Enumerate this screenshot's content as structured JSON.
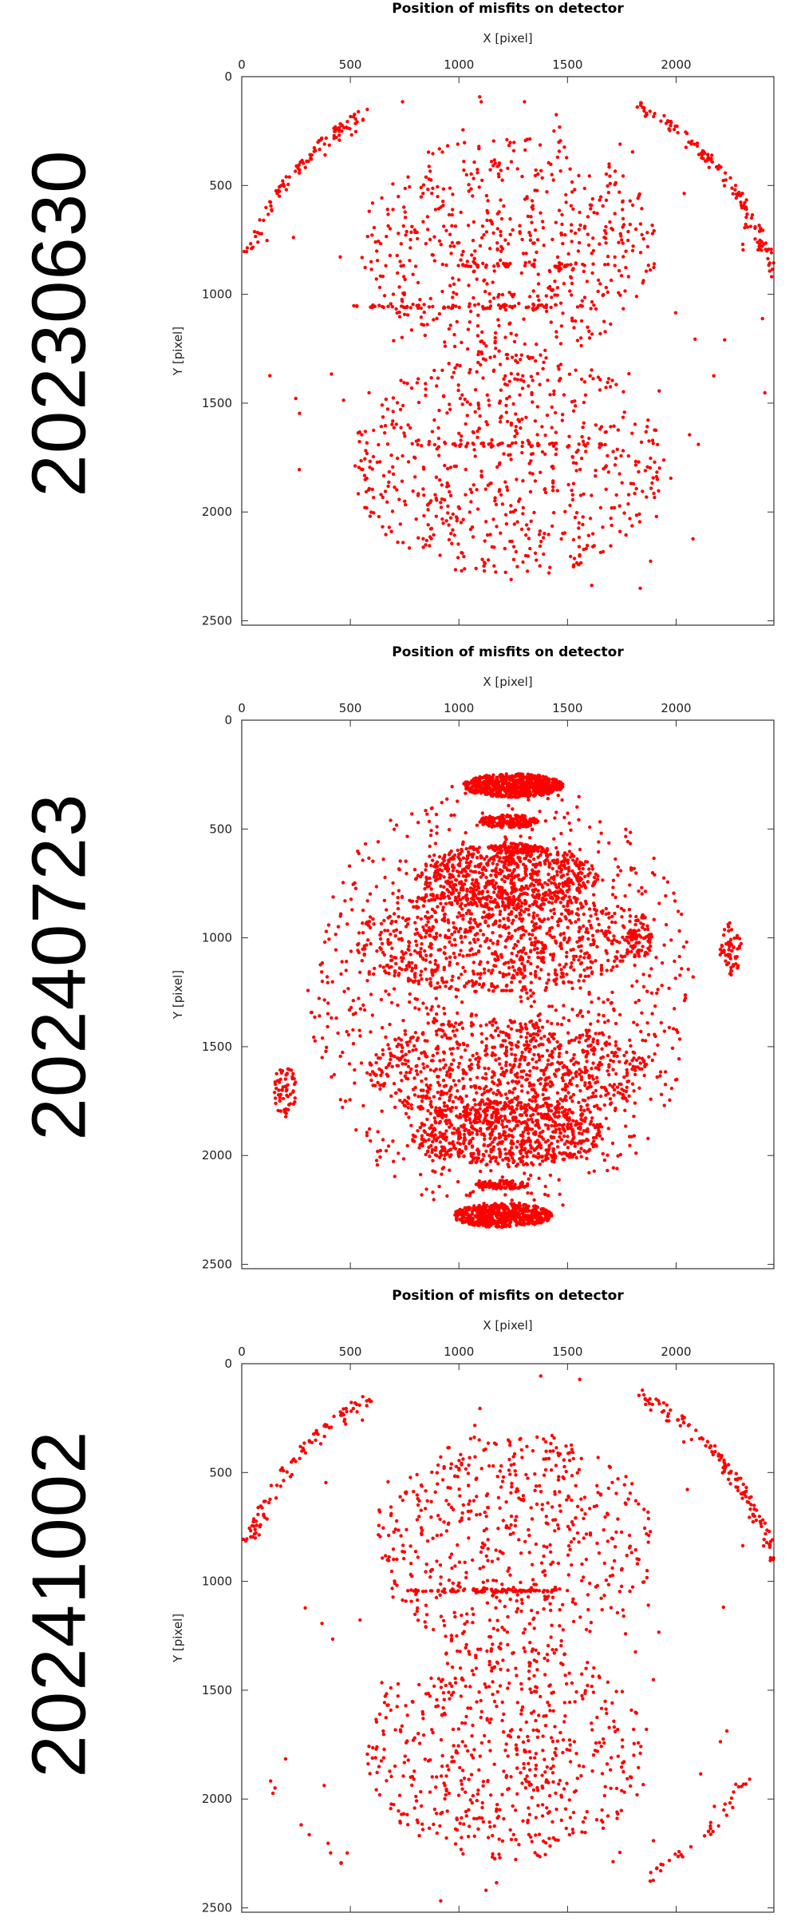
{
  "colors": {
    "points": "#ff0000",
    "axis": "#333333",
    "background": "#ffffff"
  },
  "chart_data": [
    {
      "type": "scatter",
      "run_label": "20230630",
      "title": "Position of misfits on detector",
      "xlabel": "X [pixel]",
      "ylabel": "Y [pixel]",
      "xlim": [
        0,
        2450
      ],
      "ylim": [
        2520,
        0
      ],
      "x_axis_position": "top",
      "y_axis_inverted": true,
      "x_ticks": [
        "0",
        "500",
        "1000",
        "1500",
        "2000"
      ],
      "y_ticks": [
        "0",
        "500",
        "1000",
        "1500",
        "2000",
        "2500"
      ],
      "grid": false,
      "series": [
        {
          "clusters": [
            {
              "shape": "arc",
              "center": [
                1225,
                1260
              ],
              "radius": 1290,
              "angle_range": [
                -160,
                -120
              ],
              "count": 160,
              "jitter": 25
            },
            {
              "shape": "arc",
              "center": [
                1225,
                1260
              ],
              "radius": 1290,
              "angle_range": [
                -62,
                -15
              ],
              "count": 190,
              "jitter": 25
            },
            {
              "shape": "ellipse",
              "center": [
                1230,
                780
              ],
              "radii": [
                680,
                520
              ],
              "count": 560
            },
            {
              "shape": "ellipse",
              "center": [
                1225,
                1780
              ],
              "radii": [
                720,
                520
              ],
              "count": 620
            },
            {
              "shape": "band",
              "center": [
                1050,
                1055
              ],
              "radii": [
                550,
                10
              ],
              "count": 70
            },
            {
              "shape": "band",
              "center": [
                1350,
                865
              ],
              "radii": [
                450,
                10
              ],
              "count": 45
            },
            {
              "shape": "band",
              "center": [
                1250,
                1690
              ],
              "radii": [
                450,
                10
              ],
              "count": 45
            },
            {
              "shape": "ellipse",
              "center": [
                1225,
                1260
              ],
              "radii": [
                1220,
                1260
              ],
              "count": 70
            }
          ]
        }
      ]
    },
    {
      "type": "scatter",
      "run_label": "20240723",
      "title": "Position of misfits on detector",
      "xlabel": "X [pixel]",
      "ylabel": "Y [pixel]",
      "xlim": [
        0,
        2450
      ],
      "ylim": [
        2520,
        0
      ],
      "x_axis_position": "top",
      "y_axis_inverted": true,
      "x_ticks": [
        "0",
        "500",
        "1000",
        "1500",
        "2000"
      ],
      "y_ticks": [
        "0",
        "500",
        "1000",
        "1500",
        "2000",
        "2500"
      ],
      "grid": false,
      "series": [
        {
          "clusters": [
            {
              "shape": "ellipse",
              "center": [
                1250,
                300
              ],
              "radii": [
                230,
                55
              ],
              "count": 650
            },
            {
              "shape": "ellipse",
              "center": [
                1230,
                465
              ],
              "radii": [
                140,
                30
              ],
              "count": 180
            },
            {
              "shape": "ellipse",
              "center": [
                1270,
                590
              ],
              "radii": [
                100,
                25
              ],
              "count": 90
            },
            {
              "shape": "ellipse",
              "center": [
                1200,
                2135
              ],
              "radii": [
                120,
                20
              ],
              "count": 110
            },
            {
              "shape": "ellipse",
              "center": [
                1200,
                2275
              ],
              "radii": [
                230,
                55
              ],
              "count": 550
            },
            {
              "shape": "ellipse",
              "center": [
                1220,
                720
              ],
              "radii": [
                420,
                150
              ],
              "count": 650
            },
            {
              "shape": "ellipse",
              "center": [
                1170,
                1010
              ],
              "radii": [
                650,
                240
              ],
              "count": 800
            },
            {
              "shape": "ellipse",
              "center": [
                1220,
                1610
              ],
              "radii": [
                650,
                240
              ],
              "count": 800
            },
            {
              "shape": "ellipse",
              "center": [
                1220,
                1900
              ],
              "radii": [
                450,
                150
              ],
              "count": 650
            },
            {
              "shape": "ellipse",
              "center": [
                1200,
                1270
              ],
              "radii": [
                900,
                1010
              ],
              "count": 900
            },
            {
              "shape": "ellipse",
              "center": [
                1830,
                1000
              ],
              "radii": [
                60,
                110
              ],
              "count": 80
            },
            {
              "shape": "ellipse",
              "center": [
                2250,
                1050
              ],
              "radii": [
                50,
                120
              ],
              "count": 60
            },
            {
              "shape": "ellipse",
              "center": [
                200,
                1700
              ],
              "radii": [
                50,
                130
              ],
              "count": 60
            }
          ]
        }
      ]
    },
    {
      "type": "scatter",
      "run_label": "20241002",
      "title": "Position of misfits on detector",
      "xlabel": "X [pixel]",
      "ylabel": "Y [pixel]",
      "xlim": [
        0,
        2450
      ],
      "ylim": [
        2520,
        0
      ],
      "x_axis_position": "top",
      "y_axis_inverted": true,
      "x_ticks": [
        "0",
        "500",
        "1000",
        "1500",
        "2000"
      ],
      "y_ticks": [
        "0",
        "500",
        "1000",
        "1500",
        "2000",
        "2500"
      ],
      "grid": false,
      "series": [
        {
          "clusters": [
            {
              "shape": "arc",
              "center": [
                1225,
                1260
              ],
              "radius": 1290,
              "angle_range": [
                -160,
                -120
              ],
              "count": 150,
              "jitter": 25
            },
            {
              "shape": "arc",
              "center": [
                1225,
                1260
              ],
              "radius": 1290,
              "angle_range": [
                -62,
                -15
              ],
              "count": 190,
              "jitter": 25
            },
            {
              "shape": "arc",
              "center": [
                1225,
                1260
              ],
              "radius": 1290,
              "angle_range": [
                30,
                60
              ],
              "count": 50,
              "jitter": 25
            },
            {
              "shape": "arc",
              "center": [
                1225,
                1260
              ],
              "radius": 1290,
              "angle_range": [
                125,
                150
              ],
              "count": 20,
              "jitter": 25
            },
            {
              "shape": "ellipse",
              "center": [
                1250,
                820
              ],
              "radii": [
                650,
                510
              ],
              "count": 560
            },
            {
              "shape": "ellipse",
              "center": [
                1220,
                1780
              ],
              "radii": [
                660,
                500
              ],
              "count": 600
            },
            {
              "shape": "band",
              "center": [
                1060,
                1042
              ],
              "radii": [
                300,
                8
              ],
              "count": 60
            },
            {
              "shape": "band",
              "center": [
                1350,
                1042
              ],
              "radii": [
                150,
                8
              ],
              "count": 25
            },
            {
              "shape": "ellipse",
              "center": [
                1225,
                1260
              ],
              "radii": [
                1220,
                1260
              ],
              "count": 60
            }
          ]
        }
      ]
    }
  ]
}
